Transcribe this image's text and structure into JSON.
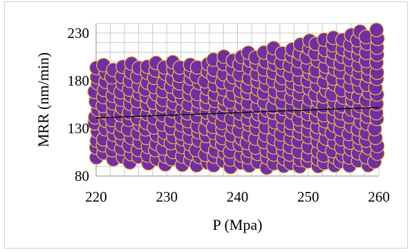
{
  "chart_data": {
    "type": "scatter",
    "title": "",
    "xlabel": "P (Mpa)",
    "ylabel": "MRR (nm/min)",
    "xlim": [
      220,
      260
    ],
    "ylim": [
      80,
      240
    ],
    "x_ticks": [
      220,
      230,
      240,
      250,
      260
    ],
    "y_ticks": [
      80,
      130,
      180,
      230
    ],
    "grid": true,
    "legend": "none",
    "colors": {
      "marker_fill": "#7030a0",
      "marker_edge": "#f5c04a",
      "trendline": "#000000",
      "grid": "#c8c8c8"
    },
    "trendline": {
      "type": "linear",
      "x": [
        220,
        260
      ],
      "y": [
        141,
        152
      ]
    },
    "series": [
      {
        "lower_envelope": {
          "x": [
            220,
            225,
            230,
            235,
            240,
            245,
            250,
            255,
            260
          ],
          "y": [
            100,
            95,
            93,
            91,
            90,
            90,
            90,
            90,
            92
          ]
        },
        "upper_envelope": {
          "x": [
            220,
            225,
            230,
            235,
            240,
            245,
            250,
            255,
            260
          ],
          "y": [
            200,
            198,
            202,
            200,
            210,
            214,
            222,
            228,
            236
          ]
        },
        "x_step": 1.2,
        "y_step": 8.5,
        "point_count_estimate": 420
      }
    ]
  }
}
